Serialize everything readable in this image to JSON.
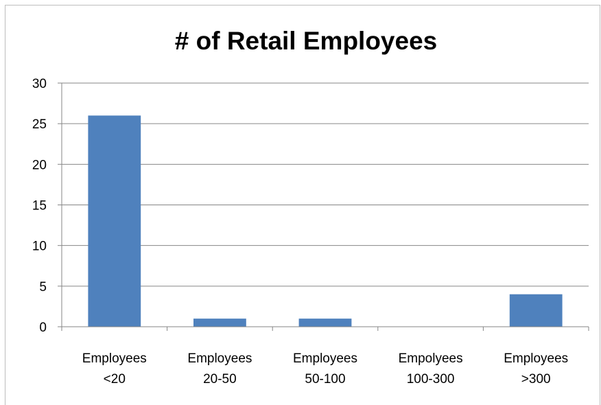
{
  "chart_data": {
    "type": "bar",
    "title": "# of Retail Employees",
    "categories": [
      [
        "Employees",
        "<20"
      ],
      [
        "Employees",
        "20-50"
      ],
      [
        "Employees",
        "50-100"
      ],
      [
        "Empolyees",
        "100-300"
      ],
      [
        "Employees",
        ">300"
      ]
    ],
    "values": [
      26,
      1,
      1,
      0,
      4
    ],
    "ylim": [
      0,
      30
    ],
    "yticks": [
      0,
      5,
      10,
      15,
      20,
      25,
      30
    ],
    "xlabel": "",
    "ylabel": "",
    "grid": true,
    "legend": "none",
    "colors": {
      "bar": "#4f81bd",
      "gridline": "#868686",
      "axis": "#868686"
    }
  }
}
